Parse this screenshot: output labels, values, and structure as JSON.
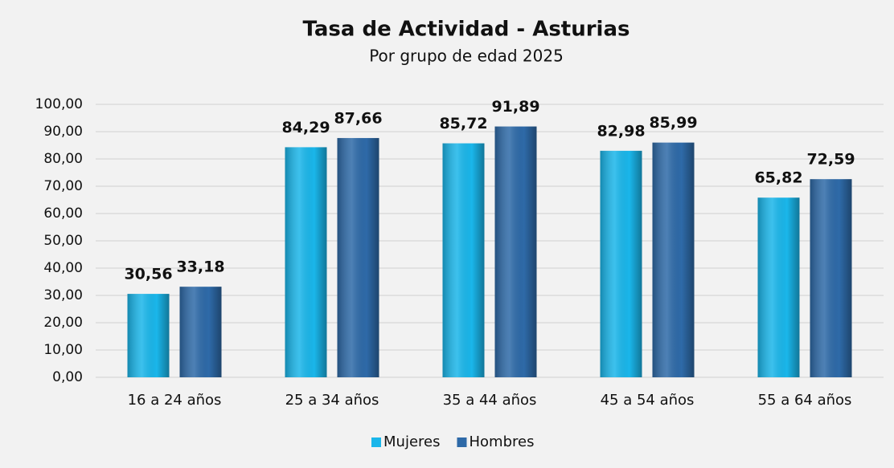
{
  "chart_data": {
    "type": "bar",
    "title": "Tasa de Actividad - Asturias",
    "subtitle": "Por grupo de edad 2025",
    "categories": [
      "16 a 24 años",
      "25 a 34 años",
      "35 a 44 años",
      "45 a 54 años",
      "55 a 64 años"
    ],
    "series": [
      {
        "name": "Mujeres",
        "color": "#1ab6ea",
        "values": [
          30.56,
          84.29,
          85.72,
          82.98,
          65.82
        ],
        "value_labels": [
          "30,56",
          "84,29",
          "85,72",
          "82,98",
          "65,82"
        ]
      },
      {
        "name": "Hombres",
        "color": "#2e6aa8",
        "values": [
          33.18,
          87.66,
          91.89,
          85.99,
          72.59
        ],
        "value_labels": [
          "33,18",
          "87,66",
          "91,89",
          "85,99",
          "72,59"
        ]
      }
    ],
    "ylim": [
      0,
      100
    ],
    "yticks": [
      {
        "value": 0,
        "label": "0,00"
      },
      {
        "value": 10,
        "label": "10,00"
      },
      {
        "value": 20,
        "label": "20,00"
      },
      {
        "value": 30,
        "label": "30,00"
      },
      {
        "value": 40,
        "label": "40,00"
      },
      {
        "value": 50,
        "label": "50,00"
      },
      {
        "value": 60,
        "label": "60,00"
      },
      {
        "value": 70,
        "label": "70,00"
      },
      {
        "value": 80,
        "label": "80,00"
      },
      {
        "value": 90,
        "label": "90,00"
      },
      {
        "value": 100,
        "label": "100,00"
      }
    ],
    "grid": true,
    "legend": "bottom"
  }
}
